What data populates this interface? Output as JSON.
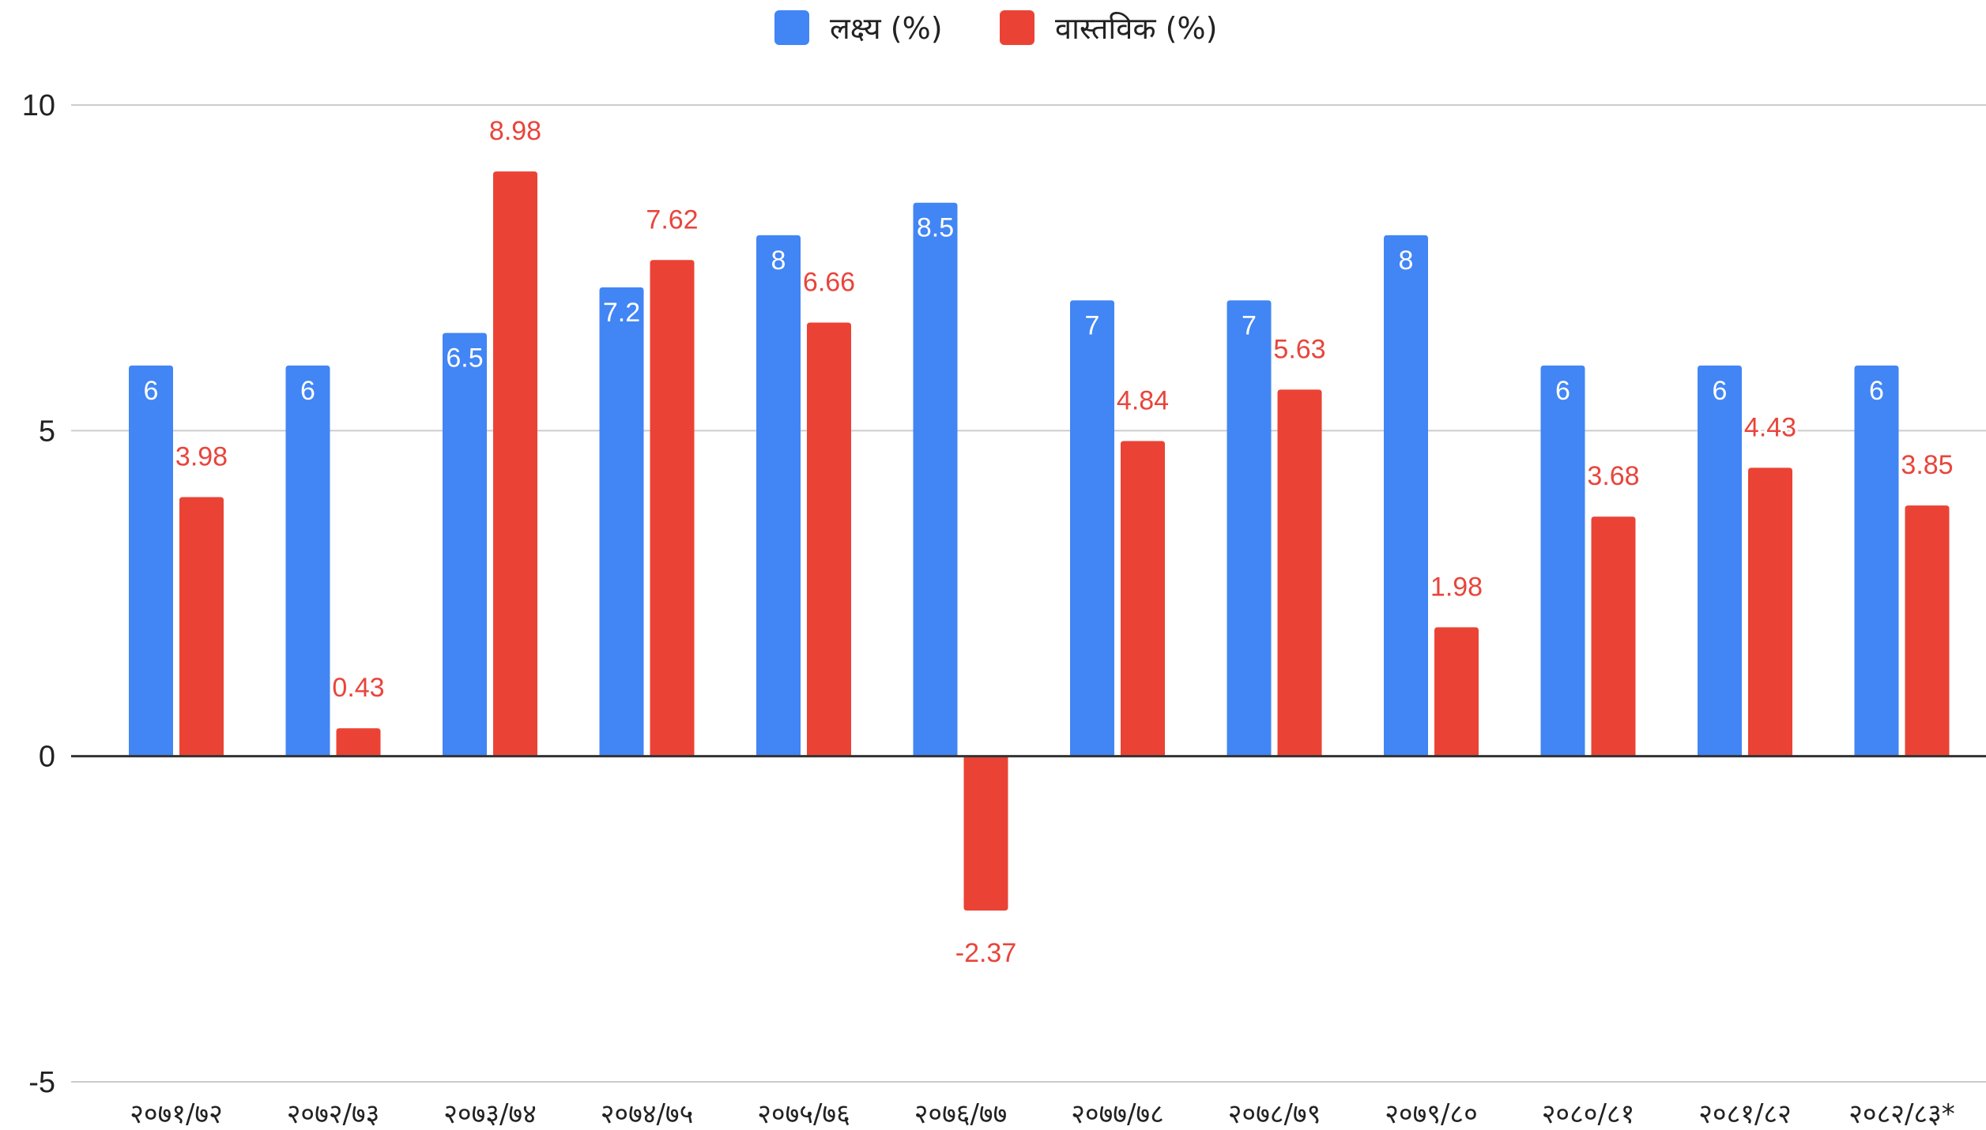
{
  "chart_data": {
    "type": "bar",
    "categories": [
      "२०७१/७२",
      "२०७२/७३",
      "२०७३/७४",
      "२०७४/७५",
      "२०७५/७६",
      "२०७६/७७",
      "२०७७/७८",
      "२०७८/७९",
      "२०७९/८०",
      "२०८०/८१",
      "२०८१/८२",
      "२०८२/८३*"
    ],
    "series": [
      {
        "name": "लक्ष्य (%)",
        "color": "#4285f4",
        "values": [
          6,
          6,
          6.5,
          7.2,
          8,
          8.5,
          7,
          7,
          8,
          6,
          6,
          6
        ],
        "labels": [
          "6",
          "6",
          "6.5",
          "7.2",
          "8",
          "8.5",
          "7",
          "7",
          "8",
          "6",
          "6",
          "6"
        ]
      },
      {
        "name": "वास्तविक (%)",
        "color": "#ea4335",
        "values": [
          3.98,
          0.43,
          8.98,
          7.62,
          6.66,
          -2.37,
          4.84,
          5.63,
          1.98,
          3.68,
          4.43,
          3.85
        ],
        "labels": [
          "3.98",
          "0.43",
          "8.98",
          "7.62",
          "6.66",
          "-2.37",
          "4.84",
          "5.63",
          "1.98",
          "3.68",
          "4.43",
          "3.85"
        ]
      }
    ],
    "ylim": [
      -5,
      10
    ],
    "yticks": [
      -5,
      0,
      5,
      10
    ],
    "ytick_labels": [
      "-5",
      "0",
      "5",
      "10"
    ],
    "title": "",
    "xlabel": "",
    "ylabel": "",
    "grid": true,
    "legend_position": "top-center"
  }
}
